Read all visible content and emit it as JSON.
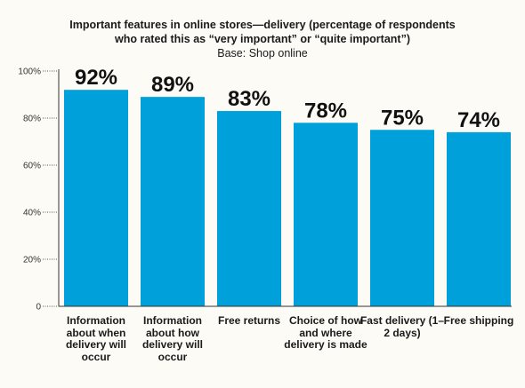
{
  "chart_data": {
    "type": "bar",
    "title": "Important features in online stores—delivery (percentage of respondents who rated this as “very important” or “quite important”)",
    "subtitle": "Base: Shop online",
    "categories": [
      "Information about when delivery will occur",
      "Information about how delivery will occur",
      "Free returns",
      "Choice of how and where delivery is made",
      "Fast delivery (1–2 days)",
      "Free shipping"
    ],
    "values": [
      92,
      89,
      83,
      78,
      75,
      74
    ],
    "data_labels": [
      "92%",
      "89%",
      "83%",
      "78%",
      "75%",
      "74%"
    ],
    "yticks": [
      "0",
      "20%",
      "40%",
      "60%",
      "80%",
      "100%"
    ],
    "ylim": [
      0,
      100
    ],
    "xlabel": "",
    "ylabel": "",
    "bar_color": "#00a1da",
    "grid": false,
    "legend": "none"
  }
}
